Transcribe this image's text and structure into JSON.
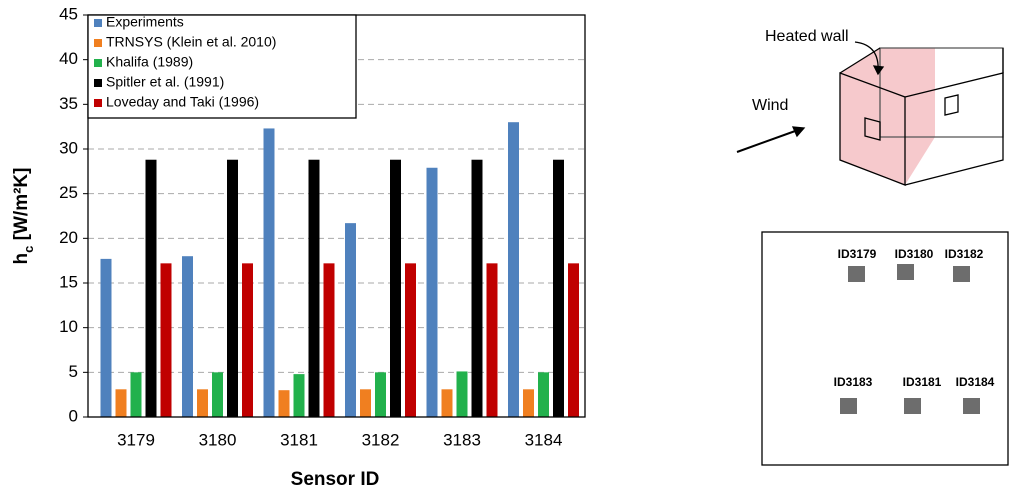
{
  "chart_data": {
    "type": "bar",
    "xlabel": "Sensor ID",
    "ylabel": {
      "base": "h",
      "subscript": "c",
      "unit": " [W/m²K]"
    },
    "categories": [
      "3179",
      "3180",
      "3181",
      "3182",
      "3183",
      "3184"
    ],
    "series": [
      {
        "name": "Experiments",
        "color": "#4f81bd",
        "values": [
          17.7,
          18.0,
          32.3,
          21.7,
          27.9,
          33.0
        ]
      },
      {
        "name": "TRNSYS (Klein et al. 2010)",
        "color": "#f07f20",
        "values": [
          3.1,
          3.1,
          3.0,
          3.1,
          3.1,
          3.1
        ]
      },
      {
        "name": "Khalifa (1989)",
        "color": "#22b14c",
        "values": [
          5.0,
          5.0,
          4.8,
          5.0,
          5.1,
          5.0
        ]
      },
      {
        "name": "Spitler et al. (1991)",
        "color": "#000000",
        "values": [
          28.8,
          28.8,
          28.8,
          28.8,
          28.8,
          28.8
        ]
      },
      {
        "name": "Loveday and Taki (1996)",
        "color": "#c00000",
        "values": [
          17.2,
          17.2,
          17.2,
          17.2,
          17.2,
          17.2
        ]
      }
    ],
    "ylim": [
      0,
      45
    ],
    "yticks": [
      0,
      5,
      10,
      15,
      20,
      25,
      30,
      35,
      40,
      45
    ],
    "grid": true,
    "legend": "top-left"
  },
  "diagram": {
    "heated_wall": "Heated wall",
    "wind": "Wind",
    "sensors": [
      "ID3179",
      "ID3180",
      "ID3182",
      "ID3183",
      "ID3181",
      "ID3184"
    ]
  }
}
